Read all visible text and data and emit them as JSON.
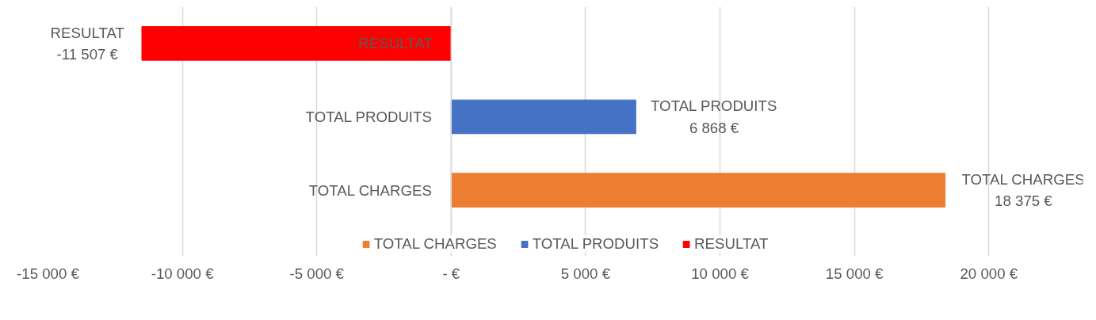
{
  "chart_data": {
    "type": "bar",
    "orientation": "horizontal",
    "categories": [
      "RESULTAT",
      "TOTAL PRODUITS",
      "TOTAL CHARGES"
    ],
    "series": [
      {
        "name": "TOTAL CHARGES",
        "color": "#ed7d31",
        "values": [
          null,
          null,
          18375
        ],
        "value_labels": [
          null,
          null,
          "TOTAL CHARGES\n18 375 €"
        ]
      },
      {
        "name": "TOTAL PRODUITS",
        "color": "#4472c4",
        "values": [
          null,
          6868,
          null
        ],
        "value_labels": [
          null,
          "TOTAL PRODUITS\n6 868 €",
          null
        ]
      },
      {
        "name": "RESULTAT",
        "color": "#ff0000",
        "values": [
          -11507,
          null,
          null
        ],
        "value_labels": [
          "RESULTAT\n-11 507 €",
          null,
          null
        ]
      }
    ],
    "xlim": [
      -15000,
      20000
    ],
    "xticks": [
      {
        "value": -15000,
        "label": "-15 000 €"
      },
      {
        "value": -10000,
        "label": "-10 000 €"
      },
      {
        "value": -5000,
        "label": "-5 000 €"
      },
      {
        "value": 0,
        "label": "- €"
      },
      {
        "value": 5000,
        "label": "5 000 €"
      },
      {
        "value": 10000,
        "label": "10 000 €"
      },
      {
        "value": 15000,
        "label": "15 000 €"
      },
      {
        "value": 20000,
        "label": "20 000 €"
      }
    ],
    "grid": "x",
    "legend": "bottom"
  }
}
